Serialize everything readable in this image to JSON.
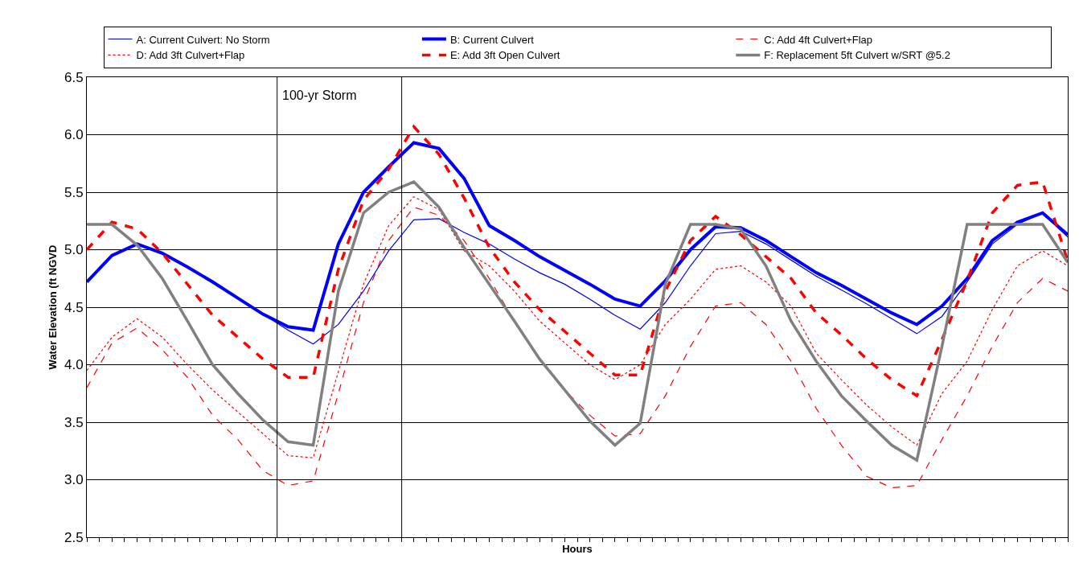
{
  "chart_data": {
    "type": "line",
    "xlabel": "Hours",
    "ylabel": "Water Elevation (ft NGVD",
    "categories": [
      null,
      null,
      null,
      null,
      null,
      null,
      null,
      null,
      null,
      null,
      null,
      null,
      null,
      null,
      null,
      null,
      null,
      null,
      null,
      null,
      null,
      null,
      null,
      null,
      null,
      null,
      null,
      null,
      null,
      null,
      null,
      null,
      null,
      null,
      null,
      null,
      null,
      null,
      null,
      null
    ],
    "ylim": [
      2.5,
      6.5
    ],
    "yticks": [
      {
        "value": 2.5,
        "label": "2.5"
      },
      {
        "value": 3,
        "label": "3.0"
      },
      {
        "value": 3.5,
        "label": "3.5"
      },
      {
        "value": 4,
        "label": "4.0"
      },
      {
        "value": 4.5,
        "label": "4.5"
      },
      {
        "value": 5,
        "label": "5.0"
      },
      {
        "value": 5.5,
        "label": "5.5"
      },
      {
        "value": 6,
        "label": "6.0"
      },
      {
        "value": 6.5,
        "label": "6.5"
      }
    ],
    "grid": "y",
    "legend": "top",
    "tick_labels": "y",
    "annotations": [
      "100-yr Storm"
    ],
    "series": [
      {
        "name": "A: Current Culvert: No Storm",
        "color": "#0000ff",
        "line_style": "solid",
        "values": [
          4.72,
          4.95,
          5.05,
          4.97,
          4.85,
          4.72,
          4.58,
          4.44,
          4.3,
          4.18,
          4.35,
          4.64,
          4.99,
          5.26,
          5.27,
          5.15,
          5.05,
          4.92,
          4.8,
          4.7,
          4.57,
          4.43,
          4.31,
          4.54,
          4.86,
          5.14,
          5.16,
          5.05,
          4.91,
          4.77,
          4.65,
          4.53,
          4.4,
          4.27,
          4.42,
          4.72,
          5.05,
          5.22,
          5.32,
          5.11
        ]
      },
      {
        "name": "B: Current Culvert",
        "color": "#0000ff",
        "line_style": "solid",
        "values": [
          4.72,
          4.95,
          5.05,
          4.97,
          4.85,
          4.72,
          4.58,
          4.44,
          4.33,
          4.3,
          5.05,
          5.5,
          5.72,
          5.93,
          5.88,
          5.62,
          5.21,
          5.08,
          4.94,
          4.82,
          4.7,
          4.57,
          4.51,
          4.73,
          5.0,
          5.2,
          5.19,
          5.08,
          4.94,
          4.8,
          4.69,
          4.57,
          4.45,
          4.35,
          4.51,
          4.75,
          5.08,
          5.24,
          5.32,
          5.13
        ]
      },
      {
        "name": "C: Add 4ft Culvert+Flap",
        "color": "#ff0000",
        "line_style": "dashed",
        "values": [
          3.8,
          4.19,
          4.32,
          4.13,
          3.89,
          3.56,
          3.35,
          3.08,
          2.95,
          2.99,
          3.75,
          4.54,
          5.08,
          5.37,
          5.3,
          5.08,
          4.75,
          4.38,
          4.05,
          3.78,
          3.56,
          3.38,
          3.4,
          3.73,
          4.16,
          4.51,
          4.54,
          4.35,
          4.03,
          3.62,
          3.3,
          3.03,
          2.93,
          2.95,
          3.35,
          3.73,
          4.16,
          4.54,
          4.75,
          4.64
        ]
      },
      {
        "name": "D: Add 3ft Culvert+Flap",
        "color": "#ff0000",
        "line_style": "dotted",
        "values": [
          3.95,
          4.24,
          4.4,
          4.24,
          4.0,
          3.78,
          3.59,
          3.4,
          3.21,
          3.19,
          3.94,
          4.7,
          5.21,
          5.46,
          5.35,
          4.99,
          4.86,
          4.64,
          4.38,
          4.19,
          4.0,
          3.87,
          4.0,
          4.35,
          4.57,
          4.83,
          4.86,
          4.72,
          4.51,
          4.1,
          3.87,
          3.65,
          3.46,
          3.3,
          3.75,
          4.03,
          4.48,
          4.86,
          4.99,
          4.86
        ]
      },
      {
        "name": "E: Add 3ft Open Culvert",
        "color": "#ff0000",
        "line_style": "dashed",
        "values": [
          5.0,
          5.24,
          5.18,
          4.97,
          4.7,
          4.43,
          4.24,
          4.05,
          3.89,
          3.89,
          4.83,
          5.43,
          5.7,
          6.07,
          5.83,
          5.45,
          5.02,
          4.72,
          4.48,
          4.29,
          4.1,
          3.91,
          3.91,
          4.64,
          5.08,
          5.29,
          5.13,
          4.94,
          4.75,
          4.45,
          4.26,
          4.05,
          3.87,
          3.73,
          4.22,
          4.73,
          5.32,
          5.56,
          5.59,
          4.9
        ]
      },
      {
        "name": "F: Replacement 5ft Culvert w/SRT @5.2",
        "color": "#808080",
        "line_style": "solid",
        "values": [
          5.22,
          5.22,
          5.04,
          4.75,
          4.38,
          4.0,
          3.75,
          3.52,
          3.33,
          3.3,
          4.64,
          5.32,
          5.5,
          5.59,
          5.37,
          5.02,
          4.7,
          4.38,
          4.05,
          3.78,
          3.51,
          3.3,
          3.49,
          4.7,
          5.22,
          5.22,
          5.18,
          4.86,
          4.38,
          4.03,
          3.73,
          3.51,
          3.3,
          3.17,
          4.16,
          5.22,
          5.22,
          5.22,
          5.22,
          4.89
        ]
      }
    ]
  }
}
